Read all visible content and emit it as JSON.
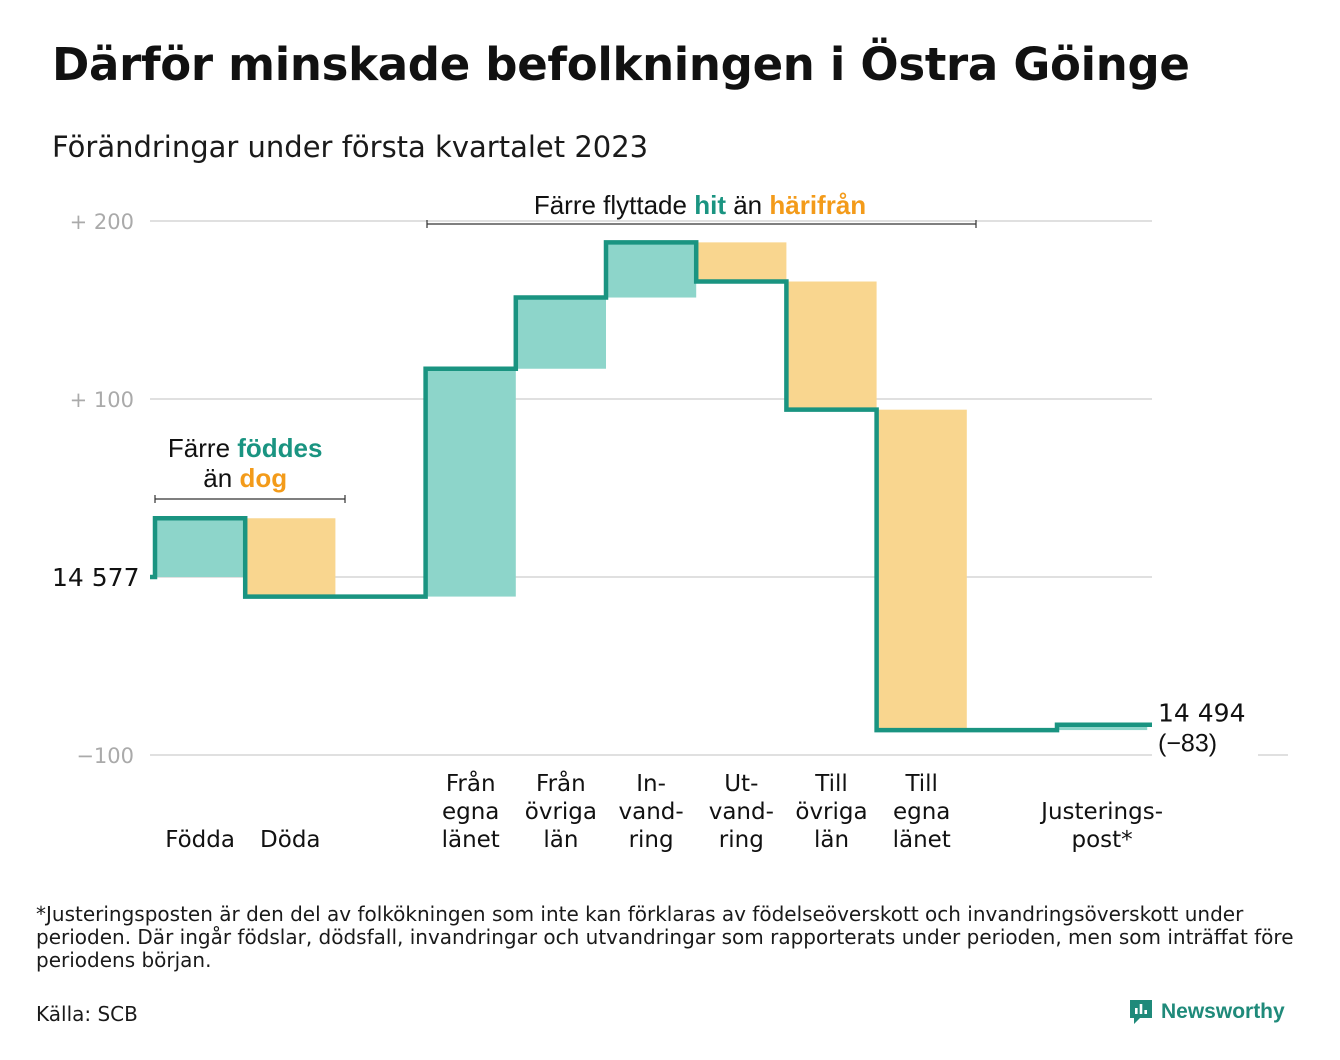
{
  "title": "Därför minskade befolkningen i Östra Göinge",
  "subtitle": "Förändringar under första kvartalet 2023",
  "colors": {
    "increase_fill": "#8dd5ca",
    "decrease_fill": "#f9d68f",
    "line": "#1a9481",
    "teal_text": "#1a9481",
    "orange_text": "#f39b1a",
    "grid": "#e0e0e0",
    "tick_text": "#aaaaaa"
  },
  "annotations": {
    "births_deaths": {
      "line1_prefix": "Färre ",
      "line1_highlight": "föddes",
      "line2_prefix": "än ",
      "line2_highlight": "dog"
    },
    "migration": {
      "prefix": "Färre flyttade ",
      "highlight1": "hit",
      "middle": " än ",
      "highlight2": "härifrån"
    }
  },
  "chart_data": {
    "type": "waterfall",
    "start_value": 14577,
    "start_label": "14 577",
    "end_value": 14494,
    "end_label_line1": "14 494",
    "end_label_line2": "(−83)",
    "y_ticks": [
      {
        "value": 200,
        "label": "+ 200"
      },
      {
        "value": 100,
        "label": "+ 100"
      },
      {
        "value": 0,
        "label": ""
      },
      {
        "value": -100,
        "label": "−100"
      }
    ],
    "ylim": [
      -100,
      200
    ],
    "grid": true,
    "steps": [
      {
        "category": "Födda",
        "label_lines": [
          "Födda"
        ],
        "change": 33
      },
      {
        "category": "Döda",
        "label_lines": [
          "Döda"
        ],
        "change": -44
      },
      {
        "category": "",
        "label_lines": [],
        "change": 0
      },
      {
        "category": "Från egna länet",
        "label_lines": [
          "Från",
          "egna",
          "länet"
        ],
        "change": 128
      },
      {
        "category": "Från övriga län",
        "label_lines": [
          "Från",
          "övriga",
          "län"
        ],
        "change": 40
      },
      {
        "category": "In- vand- ring",
        "label_lines": [
          "In-",
          "vand-",
          "ring"
        ],
        "change": 31
      },
      {
        "category": "Ut- vand- ring",
        "label_lines": [
          "Ut-",
          "vand-",
          "ring"
        ],
        "change": -22
      },
      {
        "category": "Till övriga län",
        "label_lines": [
          "Till",
          "övriga",
          "län"
        ],
        "change": -72
      },
      {
        "category": "Till egna länet",
        "label_lines": [
          "Till",
          "egna",
          "länet"
        ],
        "change": -180
      },
      {
        "category": "",
        "label_lines": [],
        "change": 0
      },
      {
        "category": "Justerings- post*",
        "label_lines": [
          "Justerings-",
          "post*"
        ],
        "change": 3
      }
    ]
  },
  "footnote": "*Justeringsposten är den del av folkökningen som inte kan förklaras av födelseöverskott och invandringsöverskott under perioden. Där ingår födslar, dödsfall, invandringar och utvandringar som rapporterats under perioden, men som inträffat före periodens början.",
  "source": "Källa: SCB",
  "brand": {
    "name": "Newsworthy",
    "icon": "newsworthy-logo-icon"
  }
}
